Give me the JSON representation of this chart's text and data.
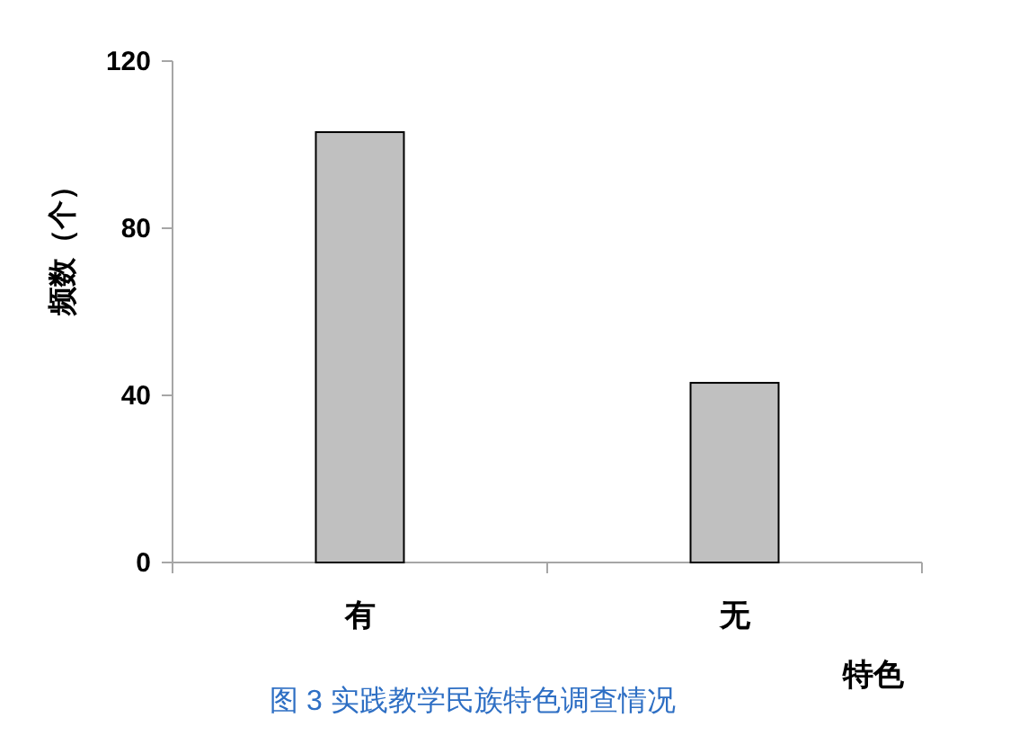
{
  "chart_data": {
    "type": "bar",
    "title": "图 3 实践教学民族特色调查情况",
    "xlabel": "特色",
    "ylabel": "频数（个）",
    "categories": [
      "有",
      "无"
    ],
    "values": [
      103,
      43
    ],
    "color": "#c0c0c0",
    "ylim": [
      0,
      120
    ],
    "yticks": [
      0,
      40,
      80,
      120
    ]
  }
}
